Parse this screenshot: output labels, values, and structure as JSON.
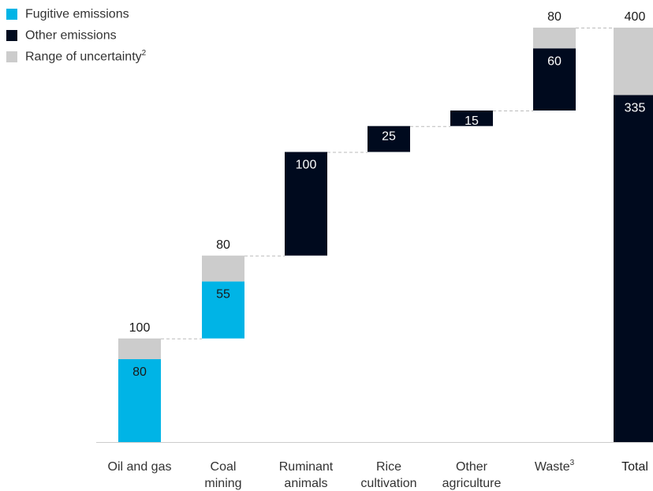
{
  "legend": [
    {
      "label": "Fugitive emissions",
      "color": "#00b4e6",
      "sup": ""
    },
    {
      "label": "Other emissions",
      "color": "#000a1e",
      "sup": ""
    },
    {
      "label": "Range of uncertainty",
      "color": "#cccccc",
      "sup": "2"
    }
  ],
  "chart_data": {
    "type": "bar",
    "subtype": "waterfall",
    "categories": [
      {
        "lines": [
          "Oil and gas"
        ],
        "sup": ""
      },
      {
        "lines": [
          "Coal",
          "mining"
        ],
        "sup": ""
      },
      {
        "lines": [
          "Ruminant",
          "animals"
        ],
        "sup": ""
      },
      {
        "lines": [
          "Rice",
          "cultivation"
        ],
        "sup": ""
      },
      {
        "lines": [
          "Other",
          "agriculture"
        ],
        "sup": ""
      },
      {
        "lines": [
          "Waste"
        ],
        "sup": "3"
      },
      {
        "lines": [
          "Total"
        ],
        "sup": ""
      }
    ],
    "bars": [
      {
        "kind": "fugitive",
        "base": 0,
        "value": 80,
        "upper": 100,
        "value_label": "80",
        "upper_label": "100"
      },
      {
        "kind": "fugitive",
        "base": 100,
        "value": 55,
        "upper": 80,
        "value_label": "55",
        "upper_label": "80"
      },
      {
        "kind": "other",
        "base": 180,
        "value": 100,
        "upper": null,
        "value_label": "100",
        "upper_label": ""
      },
      {
        "kind": "other",
        "base": 280,
        "value": 25,
        "upper": null,
        "value_label": "25",
        "upper_label": ""
      },
      {
        "kind": "other",
        "base": 305,
        "value": 15,
        "upper": null,
        "value_label": "15",
        "upper_label": ""
      },
      {
        "kind": "other",
        "base": 320,
        "value": 60,
        "upper": 80,
        "value_label": "60",
        "upper_label": "80"
      },
      {
        "kind": "total",
        "base": 0,
        "value": 335,
        "upper": 400,
        "value_label": "335",
        "upper_label": "400"
      }
    ],
    "ylim": [
      0,
      400
    ],
    "grid": false,
    "legend_position": "top-left",
    "colors": {
      "fugitive": "#00b4e6",
      "other": "#000a1e",
      "uncertainty": "#cccccc",
      "connector": "#bbbbbb",
      "axis": "#cccccc"
    }
  }
}
